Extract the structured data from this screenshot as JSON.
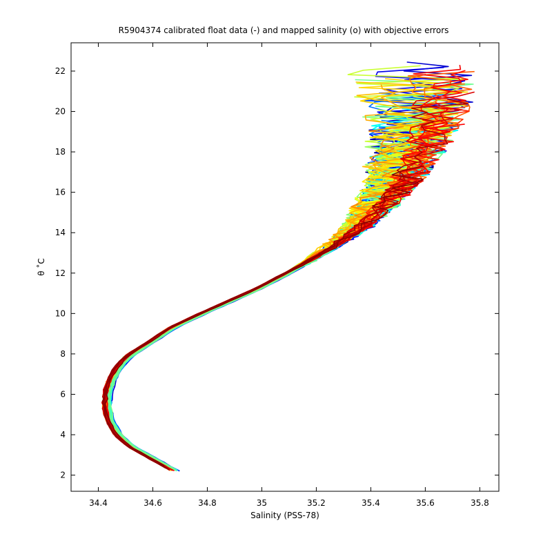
{
  "chart_data": {
    "type": "line",
    "title": "R5904374 calibrated float data (-) and mapped salinity (o) with objective errors",
    "xlabel": "Salinity (PSS-78)",
    "ylabel": "θ ˚C",
    "xlim": [
      34.3,
      35.87
    ],
    "ylim": [
      1.2,
      23.4
    ],
    "xticks": [
      34.4,
      34.6,
      34.8,
      35,
      35.2,
      35.4,
      35.6,
      35.8
    ],
    "xtick_labels": [
      "34.4",
      "34.6",
      "34.8",
      "35",
      "35.2",
      "35.4",
      "35.6",
      "35.8"
    ],
    "yticks": [
      2,
      4,
      6,
      8,
      10,
      12,
      14,
      16,
      18,
      20,
      22
    ],
    "ytick_labels": [
      "2",
      "4",
      "6",
      "8",
      "10",
      "12",
      "14",
      "16",
      "18",
      "20",
      "22"
    ],
    "grid": false,
    "legend": "none",
    "colormap": "jet (profile number)",
    "colormap_stops": [
      "#00008f",
      "#0000ff",
      "#00ffff",
      "#ffff00",
      "#ff0000",
      "#800000"
    ],
    "base_curve": {
      "x": [
        34.68,
        34.6,
        34.52,
        34.47,
        34.44,
        34.43,
        34.43,
        34.445,
        34.47,
        34.51,
        34.58,
        34.67,
        34.78,
        34.88,
        34.98,
        35.08,
        35.18,
        35.28,
        35.38,
        35.46,
        35.53,
        35.58,
        35.62,
        35.66,
        35.68
      ],
      "y": [
        2.2,
        2.8,
        3.4,
        4.0,
        4.7,
        5.3,
        6.0,
        6.7,
        7.3,
        7.9,
        8.5,
        9.3,
        10.0,
        10.6,
        11.2,
        11.9,
        12.6,
        13.4,
        14.3,
        15.3,
        16.3,
        17.3,
        18.3,
        19.3,
        20.3
      ]
    },
    "n_profiles": 90,
    "upper_scatter": {
      "salinity_range": [
        35.05,
        35.78
      ],
      "theta_range": [
        12.5,
        22.6
      ]
    }
  }
}
